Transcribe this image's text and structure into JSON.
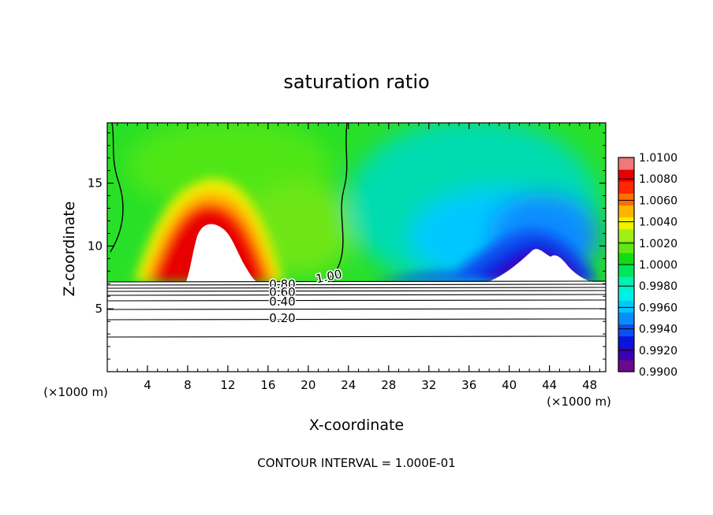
{
  "chart_data": {
    "type": "heatmap",
    "title": "saturation ratio",
    "xlabel": "X-coordinate",
    "ylabel": "Z-coordinate",
    "x_unit": "(×1000 m)",
    "x_ticks": [
      4,
      8,
      12,
      16,
      20,
      24,
      28,
      32,
      36,
      40,
      44,
      48
    ],
    "y_ticks": [
      5,
      10,
      15
    ],
    "xlim": [
      0,
      49.6
    ],
    "ylim": [
      0,
      19.8
    ],
    "footer": "CONTOUR INTERVAL = 1.000E-01",
    "colorbar": {
      "labels": [
        "1.0100",
        "1.0080",
        "1.0060",
        "1.0040",
        "1.0020",
        "1.0000",
        "0.9980",
        "0.9960",
        "0.9940",
        "0.9920",
        "0.9900"
      ],
      "range": [
        0.99,
        1.01
      ],
      "colors": [
        "#6a0a8c",
        "#3c00b4",
        "#0a14dc",
        "#0a50f0",
        "#0a8cff",
        "#00c8ff",
        "#00f0e6",
        "#00f0b4",
        "#00e65a",
        "#14dc14",
        "#64e614",
        "#a0f014",
        "#f0f000",
        "#ffb400",
        "#ff6e00",
        "#ff2800",
        "#e60000",
        "#f07878"
      ]
    },
    "contour_labels": [
      {
        "value": 1.0,
        "text": "1.00"
      },
      {
        "value": 0.8,
        "text": "0.80"
      },
      {
        "value": 0.6,
        "text": "0.60"
      },
      {
        "value": 0.4,
        "text": "0.40"
      },
      {
        "value": 0.2,
        "text": "0.20"
      }
    ],
    "field_features": [
      {
        "x": 10.2,
        "z": 11.5,
        "value": 1.009,
        "note": "dry-adiabatic plume max"
      },
      {
        "x": 43.5,
        "z": 9.6,
        "value": 0.9905,
        "note": "subsaturated min"
      }
    ],
    "ground_level_z": 7.2
  }
}
